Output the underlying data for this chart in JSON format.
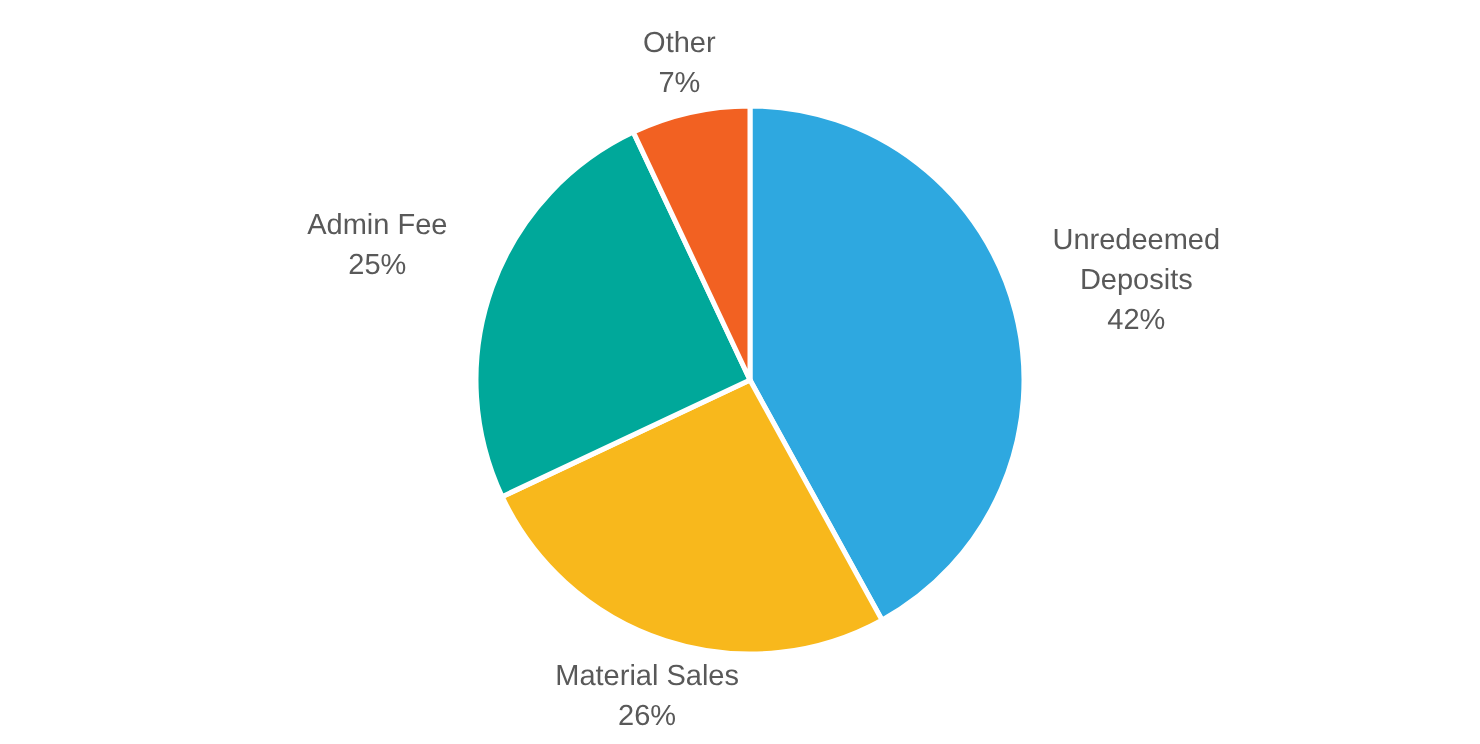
{
  "chart_data": {
    "type": "pie",
    "categories": [
      "Unredeemed Deposits",
      "Material Sales",
      "Admin Fee",
      "Other"
    ],
    "values": [
      42,
      26,
      25,
      7
    ],
    "colors": [
      "#2ea8e0",
      "#f8b81c",
      "#00a89a",
      "#f26122"
    ],
    "value_labels": [
      "42%",
      "26%",
      "25%",
      "7%"
    ]
  }
}
